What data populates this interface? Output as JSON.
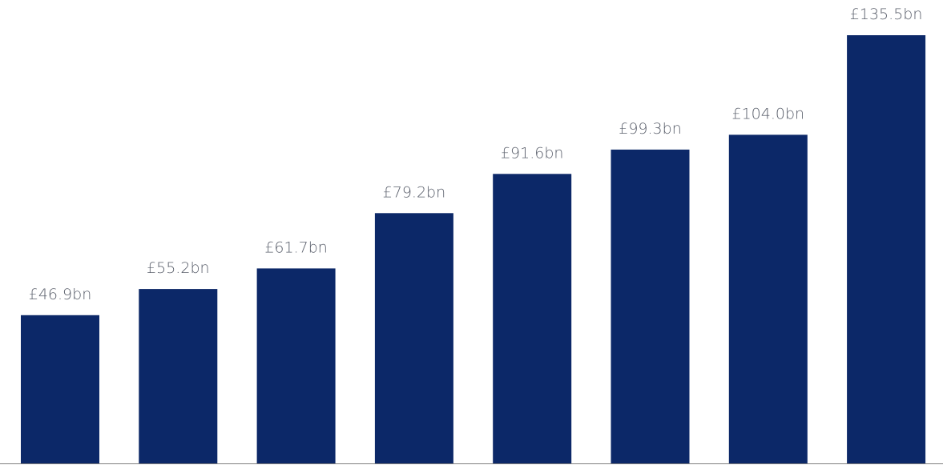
{
  "chart_data": {
    "type": "bar",
    "title": "",
    "xlabel": "",
    "ylabel": "",
    "ylim": [
      0,
      135.5
    ],
    "grid": false,
    "legend": "none",
    "values": [
      46.9,
      55.2,
      61.7,
      79.2,
      91.6,
      99.3,
      104.0,
      135.5
    ],
    "data_labels": [
      "£46.9bn",
      "£55.2bn",
      "£61.7bn",
      "£79.2bn",
      "£91.6bn",
      "£99.3bn",
      "£104.0bn",
      "£135.5bn"
    ],
    "colors": {
      "bar": "#0c2868",
      "label": "#5a5f6b",
      "axis": "#7f7f7f"
    }
  }
}
